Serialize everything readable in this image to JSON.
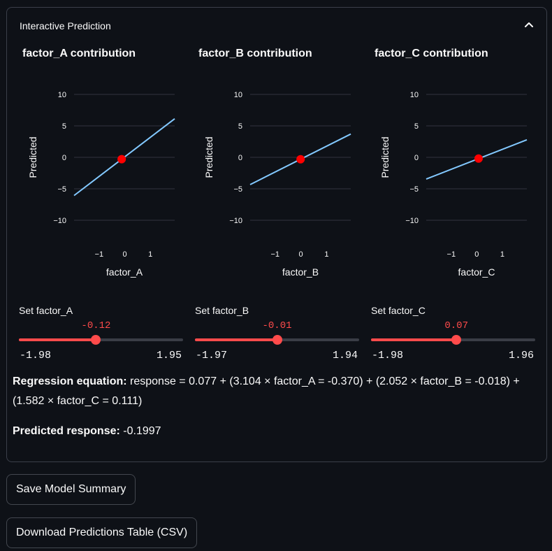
{
  "expander": {
    "title": "Interactive Prediction"
  },
  "plots": [
    {
      "title": "factor_A contribution",
      "chart_data": {
        "type": "line",
        "xlabel": "factor_A",
        "ylabel": "Predicted",
        "xticks": [
          "−1",
          "0",
          "1"
        ],
        "yticks": [
          "10",
          "5",
          "0",
          "−5",
          "−10"
        ],
        "xlim": [
          -1.98,
          1.95
        ],
        "ylim": [
          -10,
          10
        ],
        "line": {
          "x": [
            -1.98,
            1.95
          ],
          "y": [
            -6.07,
            6.13
          ]
        },
        "point": {
          "x": -0.12,
          "y": -0.29
        },
        "line_color": "#83c9ff",
        "point_color": "#ff0000"
      }
    },
    {
      "title": "factor_B contribution",
      "chart_data": {
        "type": "line",
        "xlabel": "factor_B",
        "ylabel": "Predicted",
        "xticks": [
          "−1",
          "0",
          "1"
        ],
        "yticks": [
          "10",
          "5",
          "0",
          "−5",
          "−10"
        ],
        "xlim": [
          -1.97,
          1.94
        ],
        "ylim": [
          -10,
          10
        ],
        "line": {
          "x": [
            -1.97,
            1.94
          ],
          "y": [
            -4.33,
            3.7
          ]
        },
        "point": {
          "x": -0.01,
          "y": -0.3
        },
        "line_color": "#83c9ff",
        "point_color": "#ff0000"
      }
    },
    {
      "title": "factor_C contribution",
      "chart_data": {
        "type": "line",
        "xlabel": "factor_C",
        "ylabel": "Predicted",
        "xticks": [
          "−1",
          "0",
          "1"
        ],
        "yticks": [
          "10",
          "5",
          "0",
          "−5",
          "−10"
        ],
        "xlim": [
          -1.98,
          1.96
        ],
        "ylim": [
          -10,
          10
        ],
        "line": {
          "x": [
            -1.98,
            1.96
          ],
          "y": [
            -3.45,
            2.78
          ]
        },
        "point": {
          "x": 0.07,
          "y": -0.2
        },
        "line_color": "#83c9ff",
        "point_color": "#ff0000"
      }
    }
  ],
  "sliders": [
    {
      "label": "Set factor_A",
      "value": "-0.12",
      "min": "-1.98",
      "max": "1.95",
      "frac": 0.47
    },
    {
      "label": "Set factor_B",
      "value": "-0.01",
      "min": "-1.97",
      "max": "1.94",
      "frac": 0.5
    },
    {
      "label": "Set factor_C",
      "value": "0.07",
      "min": "-1.98",
      "max": "1.96",
      "frac": 0.52
    }
  ],
  "equation": {
    "label": "Regression equation:",
    "text": "response = 0.077 + (3.104 × factor_A = -0.370) + (2.052 × factor_B = -0.018) + (1.582 × factor_C = 0.111)"
  },
  "prediction": {
    "label": "Predicted response:",
    "value": "-0.1997"
  },
  "buttons": {
    "save_summary": "Save Model Summary",
    "download_csv": "Download Predictions Table (CSV)"
  },
  "colors": {
    "accent": "#ff4b4b",
    "line": "#83c9ff",
    "point": "#ff0000"
  }
}
